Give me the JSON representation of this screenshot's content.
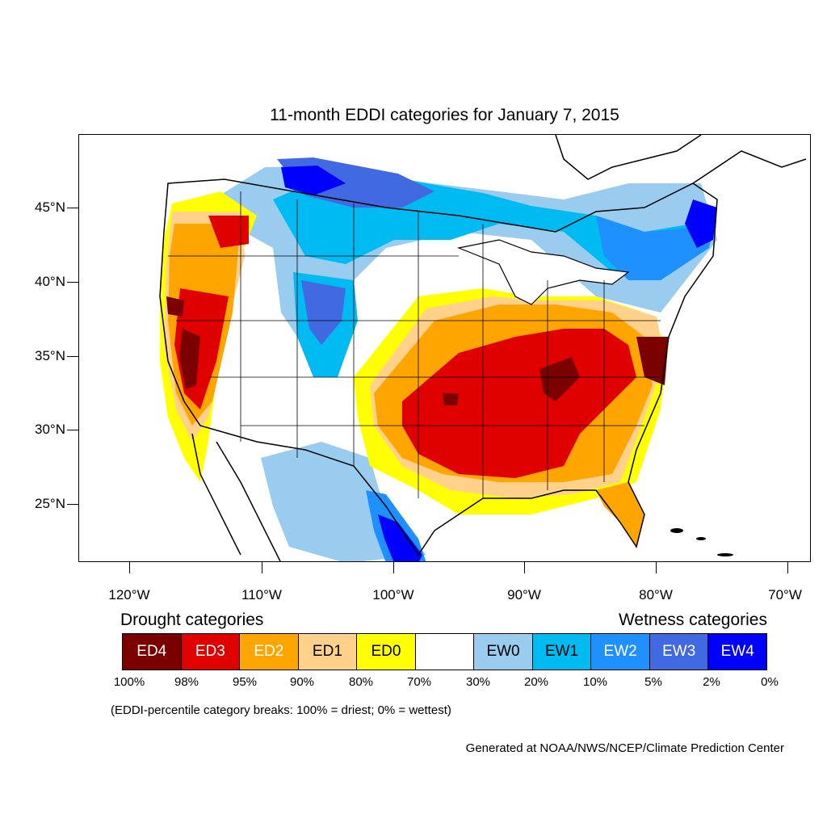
{
  "title": "11-month EDDI categories for January 7, 2015",
  "axes": {
    "lat_labels": [
      "45°N",
      "40°N",
      "35°N",
      "30°N",
      "25°N"
    ],
    "lon_labels": [
      "120°W",
      "110°W",
      "100°W",
      "90°W",
      "80°W",
      "70°W"
    ]
  },
  "legend": {
    "drought_heading": "Drought categories",
    "wetness_heading": "Wetness categories",
    "categories": [
      {
        "label": "ED4",
        "color": "#7b0000",
        "text_color": "#ffffff"
      },
      {
        "label": "ED3",
        "color": "#e00000",
        "text_color": "#ffffff"
      },
      {
        "label": "ED2",
        "color": "#ffa500",
        "text_color": "#ffffff"
      },
      {
        "label": "ED1",
        "color": "#ffd18a",
        "text_color": "#000000"
      },
      {
        "label": "ED0",
        "color": "#ffff00",
        "text_color": "#000000"
      },
      {
        "label": "",
        "color": "#ffffff",
        "text_color": "#000000"
      },
      {
        "label": "EW0",
        "color": "#99ccee",
        "text_color": "#000000"
      },
      {
        "label": "EW1",
        "color": "#00bbf2",
        "text_color": "#000000"
      },
      {
        "label": "EW2",
        "color": "#1e90ff",
        "text_color": "#ffffff"
      },
      {
        "label": "EW3",
        "color": "#4169e1",
        "text_color": "#ffffff"
      },
      {
        "label": "EW4",
        "color": "#0000ff",
        "text_color": "#ffffff"
      }
    ],
    "percentiles": [
      "100%",
      "98%",
      "95%",
      "90%",
      "80%",
      "70%",
      "30%",
      "20%",
      "10%",
      "5%",
      "2%",
      "0%"
    ]
  },
  "note": "(EDDI-percentile category breaks: 100% = driest; 0% = wettest)",
  "credit": "Generated at NOAA/NWS/NCEP/Climate Prediction Center"
}
